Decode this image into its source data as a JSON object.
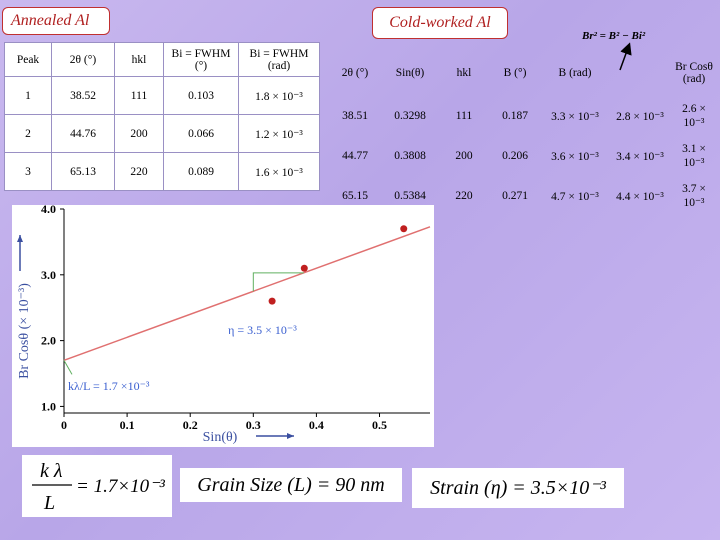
{
  "annealed": {
    "label": "Annealed Al",
    "headers": [
      "Peak",
      "2θ (°)",
      "hkl",
      "Bi = FWHM (°)",
      "Bi = FWHM (rad)"
    ],
    "rows": [
      [
        "1",
        "38.52",
        "111",
        "0.103",
        "1.8 × 10⁻³"
      ],
      [
        "2",
        "44.76",
        "200",
        "0.066",
        "1.2 × 10⁻³"
      ],
      [
        "3",
        "65.13",
        "220",
        "0.089",
        "1.6 × 10⁻³"
      ]
    ]
  },
  "cold": {
    "label": "Cold-worked Al",
    "formula": "Br² = B² − Bi²",
    "headers": [
      "2θ (°)",
      "Sin(θ)",
      "hkl",
      "B (°)",
      "B (rad)",
      "",
      "Br Cosθ (rad)"
    ],
    "rows": [
      [
        "38.51",
        "0.3298",
        "111",
        "0.187",
        "3.3 × 10⁻³",
        "2.8 × 10⁻³",
        "2.6 × 10⁻³"
      ],
      [
        "44.77",
        "0.3808",
        "200",
        "0.206",
        "3.6 × 10⁻³",
        "3.4 × 10⁻³",
        "3.1 × 10⁻³"
      ],
      [
        "65.15",
        "0.5384",
        "220",
        "0.271",
        "4.7 × 10⁻³",
        "4.4 × 10⁻³",
        "3.7 × 10⁻³"
      ]
    ]
  },
  "chart_data": {
    "type": "scatter",
    "xlabel": "Sin(θ)",
    "ylabel": "Br Cosθ (× 10⁻³)",
    "xlim": [
      0,
      0.58
    ],
    "ylim": [
      0.9,
      4.0
    ],
    "x_ticks": [
      "0",
      "0.1",
      "0.2",
      "0.3",
      "0.4",
      "0.5"
    ],
    "x_tick_values": [
      0,
      0.1,
      0.2,
      0.3,
      0.4,
      0.5
    ],
    "y_ticks": [
      "1.0",
      "2.0",
      "3.0",
      "4.0"
    ],
    "y_tick_values": [
      1.0,
      2.0,
      3.0,
      4.0
    ],
    "points": [
      {
        "x": 0.3298,
        "y": 2.6
      },
      {
        "x": 0.3808,
        "y": 3.1
      },
      {
        "x": 0.5384,
        "y": 3.7
      }
    ],
    "fit_line": {
      "intercept": 1.7,
      "slope": 3.5
    },
    "annotations": {
      "slope": "η = 3.5 × 10⁻³",
      "intercept": "kλ/L = 1.7 ×10⁻³"
    },
    "point_color": "#c02020",
    "line_color": "#e07070",
    "annotation_color": "#3a5fd0"
  },
  "results": {
    "kl_lhs_top": "k λ",
    "kl_lhs_bottom": "L",
    "kl_rhs": "= 1.7×10⁻³",
    "grain_size": "Grain Size (L) = 90 nm",
    "strain": "Strain (η) = 3.5×10⁻³"
  }
}
